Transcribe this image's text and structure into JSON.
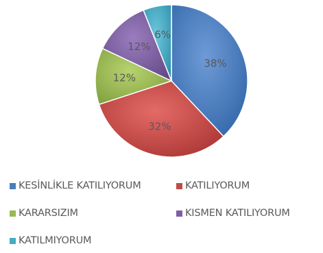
{
  "chart_data": {
    "type": "pie",
    "categories": [
      "KESİNLİKLE KATILIYORUM",
      "KATILIYORUM",
      "KARARSIZIM",
      "KISMEN KATILIYORUM",
      "KATILMIYORUM"
    ],
    "values": [
      38,
      32,
      12,
      12,
      6
    ],
    "data_labels": [
      "38%",
      "32%",
      "12%",
      "12%",
      "6%"
    ],
    "colors": [
      "#4A7EBB",
      "#BE4B48",
      "#98B954",
      "#7D60A0",
      "#46AAC5"
    ],
    "legend_position": "bottom"
  }
}
